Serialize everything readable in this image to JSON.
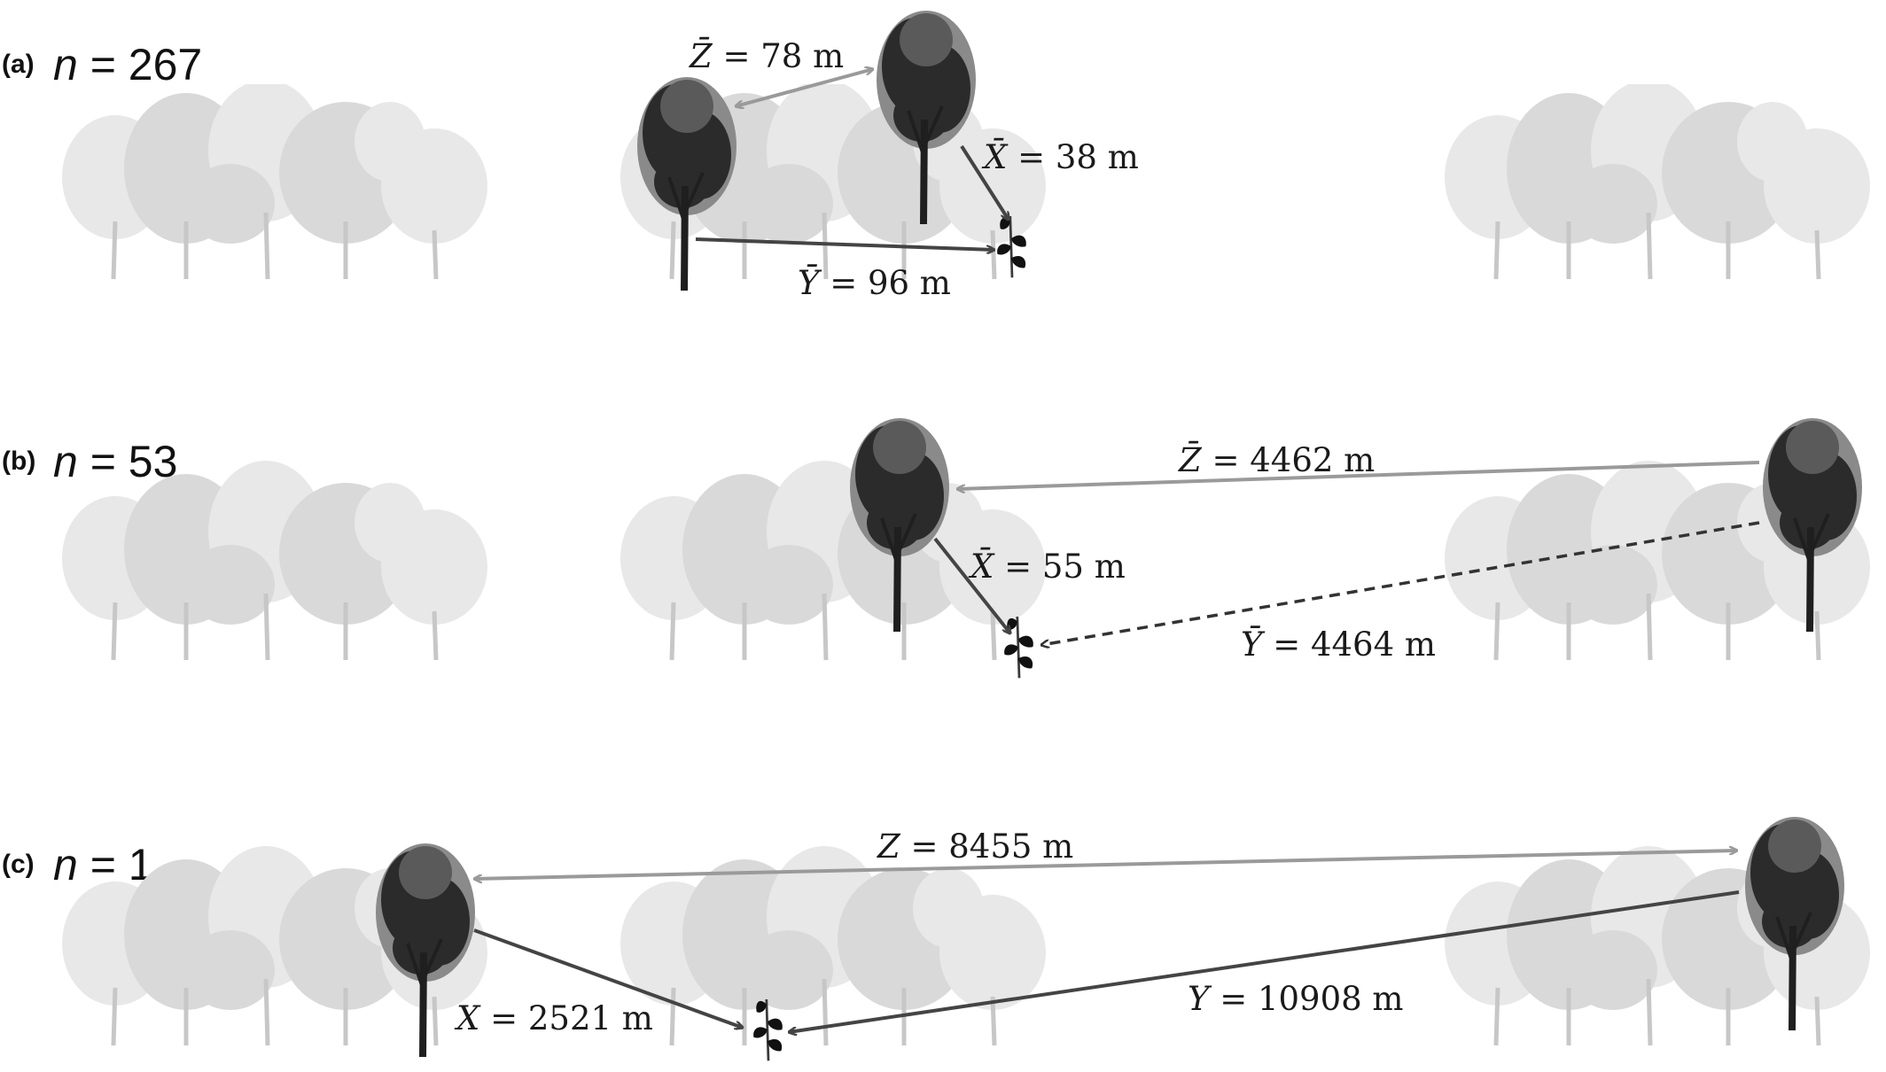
{
  "panels": [
    {
      "letter": "(a)",
      "n_label": "n",
      "n_value": "= 267",
      "labels": {
        "z": {
          "var": "Z̄",
          "value": " = 78 m"
        },
        "x": {
          "var": "X̄",
          "value": " = 38 m"
        },
        "y": {
          "var": "Ȳ",
          "value": " = 96 m"
        }
      }
    },
    {
      "letter": "(b)",
      "n_label": "n",
      "n_value": "= 53",
      "labels": {
        "z": {
          "var": "Z̄",
          "value": " = 4462 m"
        },
        "x": {
          "var": "X̄",
          "value": " = 55 m"
        },
        "y": {
          "var": "Ȳ",
          "value": " = 4464 m"
        }
      }
    },
    {
      "letter": "(c)",
      "n_label": "n",
      "n_value": "= 1",
      "labels": {
        "z": {
          "var": "Z",
          "value": " = 8455 m"
        },
        "x": {
          "var": "X",
          "value": " = 2521 m"
        },
        "y": {
          "var": "Y",
          "value": " = 10908 m"
        }
      }
    }
  ],
  "colors": {
    "background": "#ffffff",
    "background_trees": "#d9d9d9",
    "focal_trees": "#2b2b2b",
    "arrow_dark": "#444444",
    "arrow_grey": "#9a9a9a",
    "seedling": "#111111"
  },
  "icons": [
    "background-tree-icon",
    "focal-tree-icon",
    "seedling-icon"
  ]
}
